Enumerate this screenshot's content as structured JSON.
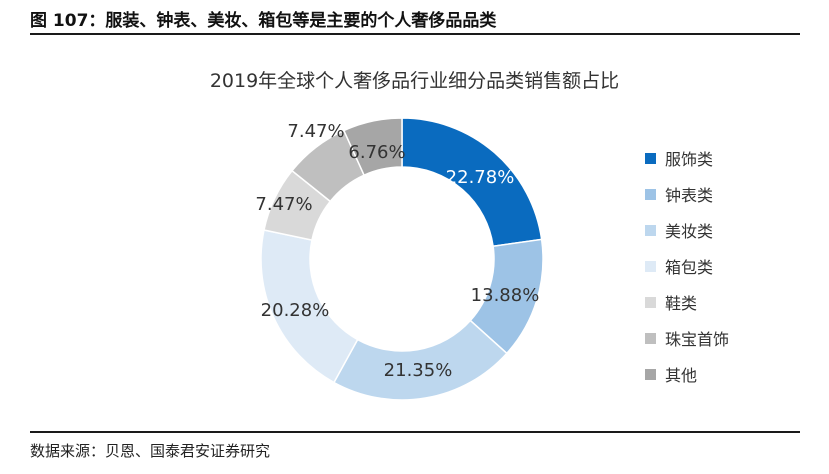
{
  "figure_title": "图 107：服装、钟表、美妆、箱包等是主要的个人奢侈品品类",
  "source": "数据来源：贝恩、国泰君安证券研究",
  "chart_data": {
    "type": "pie",
    "donut": true,
    "title": "2019年全球个人奢侈品行业细分品类销售额占比",
    "legend_position": "right",
    "slices": [
      {
        "label": "服饰类",
        "value": 22.78,
        "display": "22.78%",
        "color": "#0a6bbf",
        "label_color": "#ffffff"
      },
      {
        "label": "钟表类",
        "value": 13.88,
        "display": "13.88%",
        "color": "#9dc3e6",
        "label_color": "#333333"
      },
      {
        "label": "美妆类",
        "value": 21.35,
        "display": "21.35%",
        "color": "#bdd7ee",
        "label_color": "#333333"
      },
      {
        "label": "箱包类",
        "value": 20.28,
        "display": "20.28%",
        "color": "#deeaf6",
        "label_color": "#333333"
      },
      {
        "label": "鞋类",
        "value": 7.47,
        "display": "7.47%",
        "color": "#d9d9d9",
        "label_color": "#333333"
      },
      {
        "label": "珠宝首饰",
        "value": 7.47,
        "display": "7.47%",
        "color": "#bfbfbf",
        "label_color": "#333333"
      },
      {
        "label": "其他",
        "value": 6.76,
        "display": "6.76%",
        "color": "#a6a6a6",
        "label_color": "#333333"
      }
    ]
  }
}
